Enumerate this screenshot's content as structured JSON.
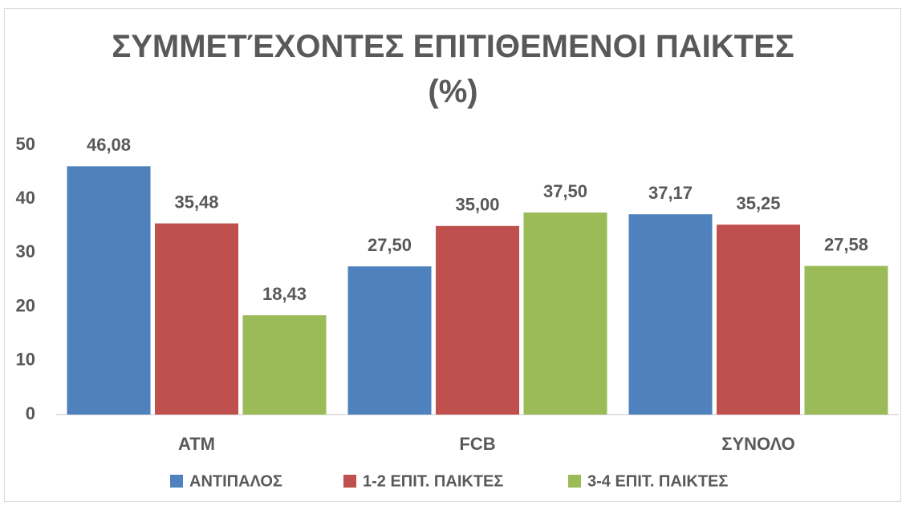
{
  "chart_data": {
    "type": "bar",
    "title": "ΣΥΜΜΕΤΈΧΟΝΤΕΣ ΕΠΙΤΙΘΕΜΕΝΟΙ ΠΑΙΚΤΕΣ\n(%)",
    "categories": [
      "ATM",
      "FCB",
      "ΣΥΝΟΛΟ"
    ],
    "series": [
      {
        "name": "ΑΝΤΙΠΑΛΟΣ",
        "color": "#4f81bd",
        "values": [
          46.08,
          27.5,
          37.17
        ],
        "value_labels": [
          "46,08",
          "27,50",
          "37,17"
        ]
      },
      {
        "name": "1-2 ΕΠΙΤ. ΠΑΙΚΤΕΣ",
        "color": "#c0504d",
        "values": [
          35.48,
          35.0,
          35.25
        ],
        "value_labels": [
          "35,48",
          "35,00",
          "35,25"
        ]
      },
      {
        "name": "3-4 ΕΠΙΤ. ΠΑΙΚΤΕΣ",
        "color": "#9bbb59",
        "values": [
          18.43,
          37.5,
          27.58
        ],
        "value_labels": [
          "18,43",
          "37,50",
          "27,58"
        ]
      }
    ],
    "ylim": [
      0,
      50
    ],
    "yticks": [
      0,
      10,
      20,
      30,
      40,
      50
    ],
    "grid": false,
    "legend": "bottom"
  }
}
